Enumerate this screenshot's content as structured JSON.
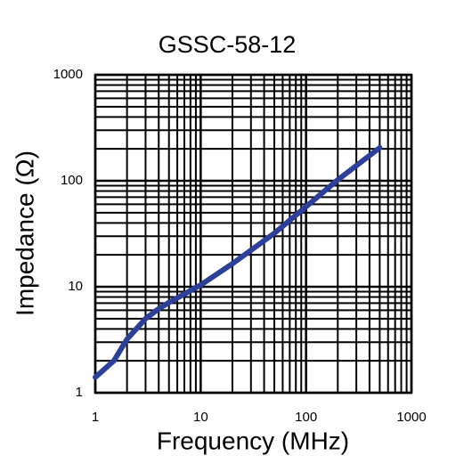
{
  "chart_data": {
    "type": "line",
    "title": "GSSC-58-12",
    "x_label": "Frequency (MHz)",
    "y_label": "Impedance (Ω)",
    "x_log": true,
    "y_log": true,
    "grid": true,
    "xlim": [
      1,
      1000
    ],
    "ylim": [
      1,
      1000
    ],
    "xticks": [
      1,
      10,
      100,
      1000
    ],
    "yticks": [
      1,
      10,
      100,
      1000
    ],
    "x": [
      1,
      1.5,
      2,
      3,
      4,
      5,
      10,
      20,
      50,
      100,
      200,
      300,
      500
    ],
    "series": [
      {
        "name": "Impedance",
        "color": "#2c3f99",
        "values": [
          1.4,
          2.0,
          3.2,
          5.0,
          6.2,
          7.1,
          10.4,
          16.5,
          32,
          57,
          102,
          139,
          205
        ]
      }
    ]
  }
}
